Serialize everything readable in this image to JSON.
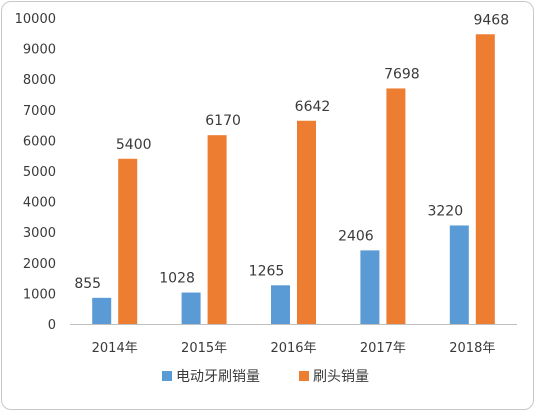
{
  "chart_data": {
    "type": "bar",
    "categories": [
      "2014年",
      "2015年",
      "2016年",
      "2017年",
      "2018年"
    ],
    "series": [
      {
        "name": "电动牙刷销量",
        "color": "#5b9bd5",
        "values": [
          855,
          1028,
          1265,
          2406,
          3220
        ]
      },
      {
        "name": "刷头销量",
        "color": "#ed7d31",
        "values": [
          5400,
          6170,
          6642,
          7698,
          9468
        ]
      }
    ],
    "ylim": [
      0,
      10000
    ],
    "yticks": [
      0,
      1000,
      2000,
      3000,
      4000,
      5000,
      6000,
      7000,
      8000,
      9000,
      10000
    ],
    "legend_position": "bottom",
    "grid": false
  }
}
